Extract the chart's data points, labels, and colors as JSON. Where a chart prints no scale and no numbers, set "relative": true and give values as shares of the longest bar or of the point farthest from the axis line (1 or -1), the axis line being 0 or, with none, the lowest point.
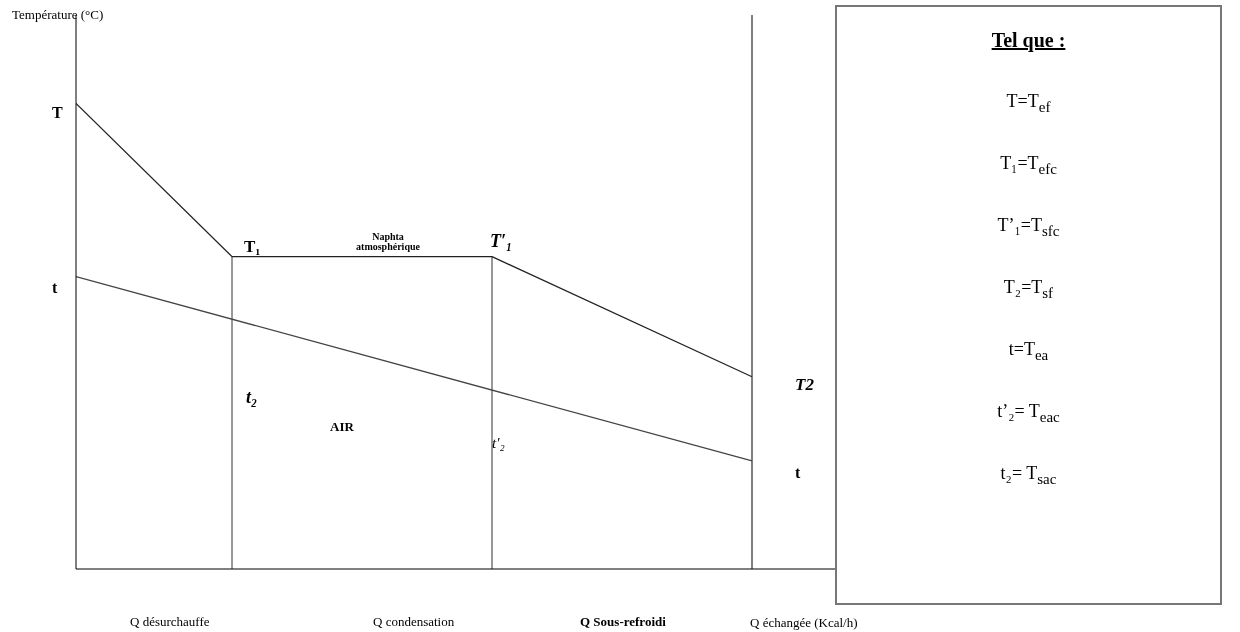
{
  "chart_data": {
    "type": "line",
    "relative": true,
    "xlabel": "Q échangée (Kcal/h)",
    "categories": [
      null,
      null,
      null,
      null,
      null,
      null,
      null,
      null,
      null,
      null,
      null,
      null,
      null,
      null,
      null,
      null,
      null
    ],
    "series": [
      {
        "color": "#222222",
        "values": [
          1,
          null,
          null,
          0.671,
          null,
          null,
          null,
          null,
          0.671,
          null,
          null,
          null,
          null,
          0.413,
          null,
          null,
          null
        ]
      },
      {
        "color": "#444444",
        "values": [
          0.628,
          null,
          null,
          null,
          null,
          null,
          null,
          null,
          null,
          null,
          null,
          null,
          null,
          0.232,
          null,
          null,
          null
        ]
      }
    ],
    "marker": "none",
    "line_style": "solid",
    "annotations": [
      "Température (°C)",
      "T",
      "t",
      "T₁",
      "Naphta atmosphérique",
      "T′₁",
      "T2",
      "t₂",
      "AIR",
      "t′₂",
      "t",
      "Q désurchauffe",
      "Q condensation",
      "Q Sous-refroidi",
      "Tel que :",
      "T=T$_{ef}$",
      "T₁=T$_{efc}$",
      "T’₁=T$_{sfc}$",
      "T₂=T$_{sf}$",
      "t=T$_{ea}$",
      "t’₂= T$_{eac}$",
      "t₂= T$_{sac}$"
    ]
  }
}
